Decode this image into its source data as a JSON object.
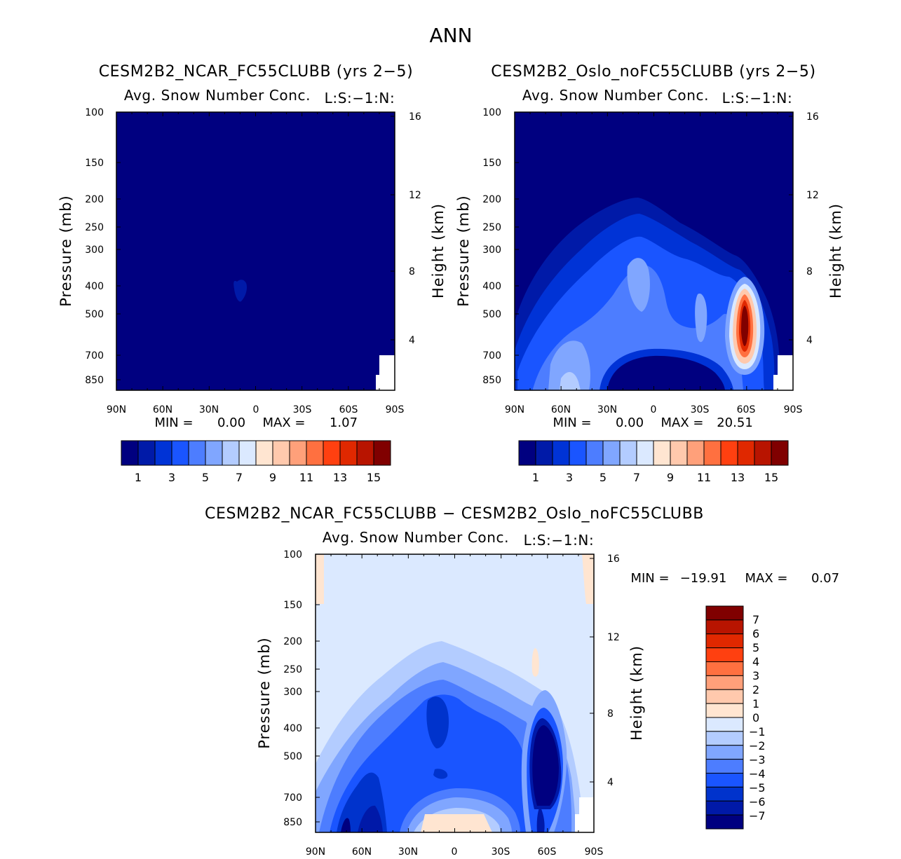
{
  "figure_title": "ANN",
  "colors": {
    "seq": [
      "#000080",
      "#001aa8",
      "#0033d6",
      "#1a55ff",
      "#4d7dff",
      "#80a6ff",
      "#b3ccff",
      "#dbe9ff",
      "#ffe5d1",
      "#ffc9ad",
      "#ffa07a",
      "#ff7040",
      "#ff4010",
      "#e02800",
      "#b81400",
      "#800000"
    ],
    "diff": [
      "#000080",
      "#0019a8",
      "#0033cc",
      "#1a55ff",
      "#4d7dff",
      "#80a6ff",
      "#b3ccff",
      "#dbe9ff",
      "#ffe5d1",
      "#ffc9ad",
      "#ffa07a",
      "#ff7040",
      "#ff4010",
      "#e02800",
      "#b81400",
      "#800000"
    ],
    "background": "#ffffff"
  },
  "chart_data": [
    {
      "type": "contour",
      "title": "CESM2B2_NCAR_FC55CLUBB (yrs 2−5)",
      "subtitle": "Avg. Snow Number Conc.",
      "units": "L:S:−1:N:",
      "xlabel": "",
      "ylabel": "Pressure (mb)",
      "y2label": "Height (km)",
      "x_ticks": [
        "90N",
        "60N",
        "30N",
        "0",
        "30S",
        "60S",
        "90S"
      ],
      "y_ticks": [
        "100",
        "150",
        "200",
        "250",
        "300",
        "400",
        "500",
        "700",
        "850"
      ],
      "y2_ticks": [
        "16",
        "12",
        "8",
        "4"
      ],
      "stats": {
        "min_label": "MIN =",
        "min": "0.00",
        "max_label": "MAX =",
        "max": "1.07"
      },
      "colorbar_labels": [
        "1",
        "3",
        "5",
        "7",
        "9",
        "11",
        "13",
        "15"
      ],
      "levels": [
        1,
        2,
        3,
        4,
        5,
        6,
        7,
        8,
        9,
        10,
        11,
        12,
        13,
        14,
        15
      ]
    },
    {
      "type": "contour",
      "title": "CESM2B2_Oslo_noFC55CLUBB (yrs 2−5)",
      "subtitle": "Avg. Snow Number Conc.",
      "units": "L:S:−1:N:",
      "xlabel": "",
      "ylabel": "Pressure (mb)",
      "y2label": "Height (km)",
      "x_ticks": [
        "90N",
        "60N",
        "30N",
        "0",
        "30S",
        "60S",
        "90S"
      ],
      "y_ticks": [
        "100",
        "150",
        "200",
        "250",
        "300",
        "400",
        "500",
        "700",
        "850"
      ],
      "y2_ticks": [
        "16",
        "12",
        "8",
        "4"
      ],
      "stats": {
        "min_label": "MIN =",
        "min": "0.00",
        "max_label": "MAX =",
        "max": "20.51"
      },
      "colorbar_labels": [
        "1",
        "3",
        "5",
        "7",
        "9",
        "11",
        "13",
        "15"
      ],
      "levels": [
        1,
        2,
        3,
        4,
        5,
        6,
        7,
        8,
        9,
        10,
        11,
        12,
        13,
        14,
        15
      ]
    },
    {
      "type": "contour",
      "title": "CESM2B2_NCAR_FC55CLUBB − CESM2B2_Oslo_noFC55CLUBB",
      "subtitle": "Avg. Snow Number Conc.",
      "units": "L:S:−1:N:",
      "xlabel": "",
      "ylabel": "Pressure (mb)",
      "y2label": "Height (km)",
      "x_ticks": [
        "90N",
        "60N",
        "30N",
        "0",
        "30S",
        "60S",
        "90S"
      ],
      "y_ticks": [
        "100",
        "150",
        "200",
        "250",
        "300",
        "400",
        "500",
        "700",
        "850"
      ],
      "y2_ticks": [
        "16",
        "12",
        "8",
        "4"
      ],
      "stats": {
        "min_label": "MIN =",
        "min": "−19.91",
        "max_label": "MAX =",
        "max": "0.07"
      },
      "colorbar_labels": [
        "7",
        "6",
        "5",
        "4",
        "3",
        "2",
        "1",
        "0",
        "−1",
        "−2",
        "−3",
        "−4",
        "−5",
        "−6",
        "−7"
      ],
      "levels": [
        -7,
        -6,
        -5,
        -4,
        -3,
        -2,
        -1,
        0,
        1,
        2,
        3,
        4,
        5,
        6,
        7
      ]
    }
  ]
}
